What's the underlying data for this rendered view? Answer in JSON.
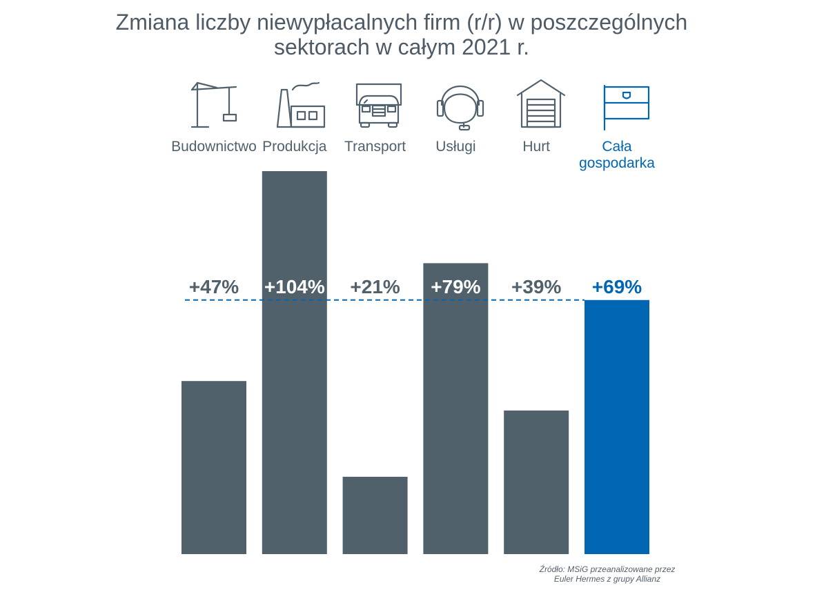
{
  "chart_data": {
    "type": "bar",
    "title_lines": [
      "Zmiana liczby niewypłacalnych firm (r/r) w poszczególnych",
      "sektorach w całym 2021 r."
    ],
    "categories": [
      {
        "label_lines": [
          "Budownictwo"
        ],
        "value": 47,
        "value_label": "+47%",
        "icon": "construction-crane-icon",
        "highlight": false
      },
      {
        "label_lines": [
          "Produkcja"
        ],
        "value": 104,
        "value_label": "+104%",
        "icon": "factory-icon",
        "highlight": false
      },
      {
        "label_lines": [
          "Transport"
        ],
        "value": 21,
        "value_label": "+21%",
        "icon": "truck-icon",
        "highlight": false
      },
      {
        "label_lines": [
          "Usługi"
        ],
        "value": 79,
        "value_label": "+79%",
        "icon": "headset-icon",
        "highlight": false
      },
      {
        "label_lines": [
          "Hurt"
        ],
        "value": 39,
        "value_label": "+39%",
        "icon": "warehouse-icon",
        "highlight": false
      },
      {
        "label_lines": [
          "Cała",
          "gospodarka"
        ],
        "value": 69,
        "value_label": "+69%",
        "icon": "flag-icon",
        "highlight": true
      }
    ],
    "reference_line": {
      "value": 69,
      "style": "dashed"
    },
    "ylim": [
      0,
      104
    ],
    "xlabel": "",
    "ylabel": "",
    "grid": false,
    "colors": {
      "bar": "#50616c",
      "highlight": "#0066b3",
      "label": "#50616c",
      "title": "#4e5b66",
      "value_on_bar": "#ffffff"
    }
  },
  "source_lines": [
    "Źródło: MSiG przeanalizowane przez",
    "Euler Hermes z grupy Allianz"
  ]
}
